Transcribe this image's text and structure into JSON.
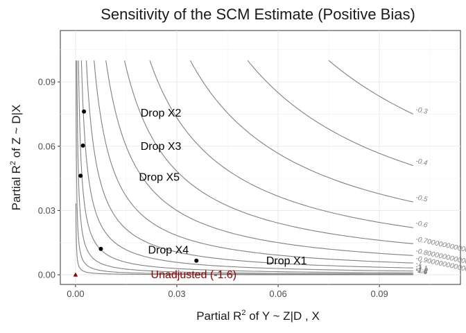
{
  "chart_data": {
    "type": "contour",
    "title": "Sensitivity of the SCM Estimate (Positive Bias)",
    "xlabel": {
      "pre": "Partial R",
      "sup": "2",
      "post": " of Y ~ Z|D , X"
    },
    "ylabel": {
      "pre": "Partial R",
      "sup": "2",
      "post": " of Z ~ D|X"
    },
    "xlim": [
      -0.0045,
      0.114
    ],
    "ylim": [
      -0.0045,
      0.114
    ],
    "xticks": [
      0.0,
      0.03,
      0.06,
      0.09
    ],
    "yticks": [
      0.0,
      0.03,
      0.06,
      0.09
    ],
    "xtick_labels": [
      "0.00",
      "0.03",
      "0.06",
      "0.09"
    ],
    "ytick_labels": [
      "0.00",
      "0.03",
      "0.06",
      "0.09"
    ],
    "grid": true,
    "contour_color": "#808080",
    "contours": [
      {
        "label": "-0.3",
        "c": 0.0075
      },
      {
        "label": "-0.4",
        "c": 0.0051
      },
      {
        "label": "-0.5",
        "c": 0.0034
      },
      {
        "label": "-0.6",
        "c": 0.0022
      },
      {
        "label": "-0.700000000000000",
        "c": 0.00145
      },
      {
        "label": "-0.800000000000000",
        "c": 0.0009
      },
      {
        "label": "-0.900000000000000",
        "c": 0.00055
      },
      {
        "label": "-1",
        "c": 0.00032
      },
      {
        "label": "-1.1",
        "c": 0.000175
      },
      {
        "label": "-1.2",
        "c": 8.75e-05
      },
      {
        "label": "-1.3",
        "c": 4e-05
      },
      {
        "label": "-1.4",
        "c": 1.5e-05
      },
      {
        "label": "-1.5",
        "c": 4e-06
      }
    ],
    "points": [
      {
        "label": "Drop X2",
        "x": 0.0025,
        "y": 0.0762
      },
      {
        "label": "Drop X3",
        "x": 0.0022,
        "y": 0.0603
      },
      {
        "label": "Drop X5",
        "x": 0.0015,
        "y": 0.0462
      },
      {
        "label": "Drop X4",
        "x": 0.0075,
        "y": 0.0121
      },
      {
        "label": "Drop X1",
        "x": 0.0358,
        "y": 0.0066
      }
    ],
    "point_labels": [
      {
        "text": "Drop X2",
        "x": 0.0253,
        "y": 0.0752
      },
      {
        "text": "Drop X3",
        "x": 0.0253,
        "y": 0.0597
      },
      {
        "text": "Drop X5",
        "x": 0.0248,
        "y": 0.0453
      },
      {
        "text": "Drop X4",
        "x": 0.0275,
        "y": 0.0113
      },
      {
        "text": "Drop X1",
        "x": 0.0625,
        "y": 0.0063
      }
    ],
    "unadjusted": {
      "x": 0.0,
      "y": 0.0,
      "label": "Unadjusted (-1.6)",
      "label_x": 0.035,
      "label_y": -0.0002,
      "color": "#8b0000"
    }
  }
}
